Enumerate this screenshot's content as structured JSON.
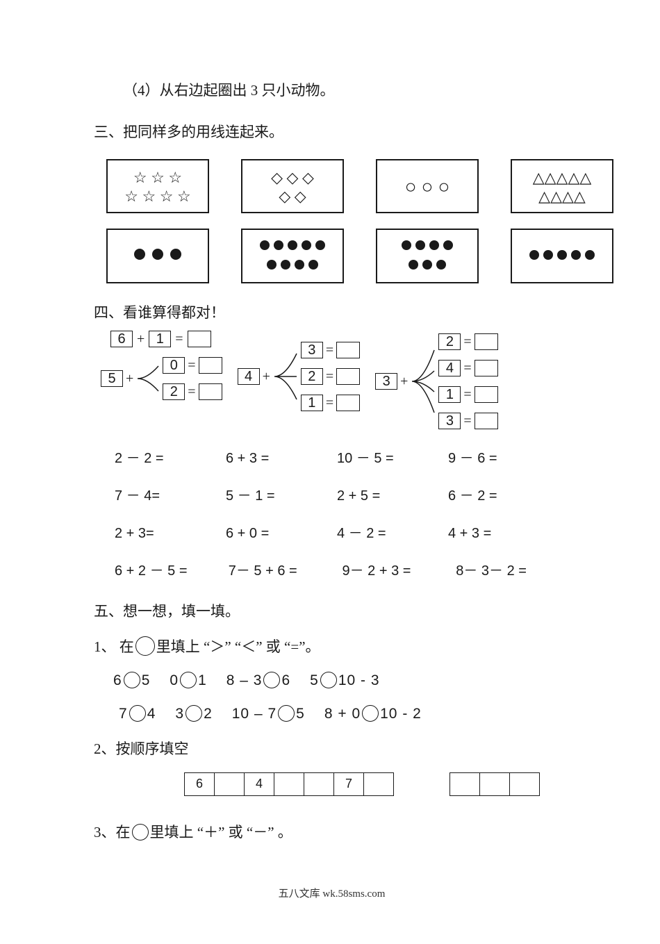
{
  "q4": "（4）从右边起圈出 3 只小动物。",
  "sec3_title": "三、把同样多的用线连起来。",
  "match_top": [
    {
      "rows": [
        "☆ ☆ ☆",
        "☆ ☆ ☆ ☆"
      ]
    },
    {
      "rows": [
        "◇ ◇ ◇",
        "◇ ◇"
      ]
    },
    {
      "rows": [
        "○ ○ ○"
      ]
    },
    {
      "rows": [
        "△△△△△",
        "△△△△"
      ]
    }
  ],
  "match_bottom_counts": [
    {
      "row1": 3,
      "row2": 0,
      "big": true
    },
    {
      "row1": 5,
      "row2": 4
    },
    {
      "row1": 4,
      "row2": 3
    },
    {
      "row1": 5,
      "row2": 0
    }
  ],
  "sec4_title": "四、看谁算得都对！",
  "eq_top": {
    "a": "6",
    "op": "+",
    "b": "1",
    "eq": "="
  },
  "branch1": {
    "lead": "5",
    "op": "+",
    "items": [
      "0",
      "2"
    ]
  },
  "branch2": {
    "lead": "4",
    "op": "+",
    "items": [
      "3",
      "2",
      "1"
    ]
  },
  "branch3": {
    "lead": "3",
    "op": "+",
    "items": [
      "2",
      "4",
      "1",
      "3"
    ]
  },
  "arith_rows": [
    [
      "2 － 2 =",
      "6 + 3 =",
      "10 － 5 =",
      "9 － 6 ="
    ],
    [
      "7 － 4=",
      "5 － 1 =",
      "2 + 5 =",
      "6 － 2 ="
    ],
    [
      "2 + 3=",
      "6 + 0 =",
      "4 － 2 =",
      "4 + 3 ="
    ]
  ],
  "arith_row_wide": [
    "6 + 2 － 5 =",
    "7－ 5 + 6 =",
    "9－ 2 + 3 =",
    "8－ 3－ 2 ="
  ],
  "sec5_title": "五、想一想，填一填。",
  "sec5_q1_a": "1、 在",
  "sec5_q1_b": "里填上 “＞” “＜” 或 “=”。",
  "compare1": [
    "6",
    "5",
    "0",
    "1",
    "8 – 3",
    "6",
    "5",
    "10 - 3"
  ],
  "compare2": [
    "7",
    "4",
    "3",
    "2",
    "10 – 7",
    "5",
    "8 + 0",
    "10 - 2"
  ],
  "sec5_q2": "2、按顺序填空",
  "seq_a": [
    "6",
    "",
    "4",
    "",
    "",
    "7",
    ""
  ],
  "seq_b": [
    "",
    "",
    ""
  ],
  "sec5_q3_a": "3、在",
  "sec5_q3_b": "里填上 “＋” 或 “－” 。",
  "footer": "五八文库 wk.58sms.com"
}
